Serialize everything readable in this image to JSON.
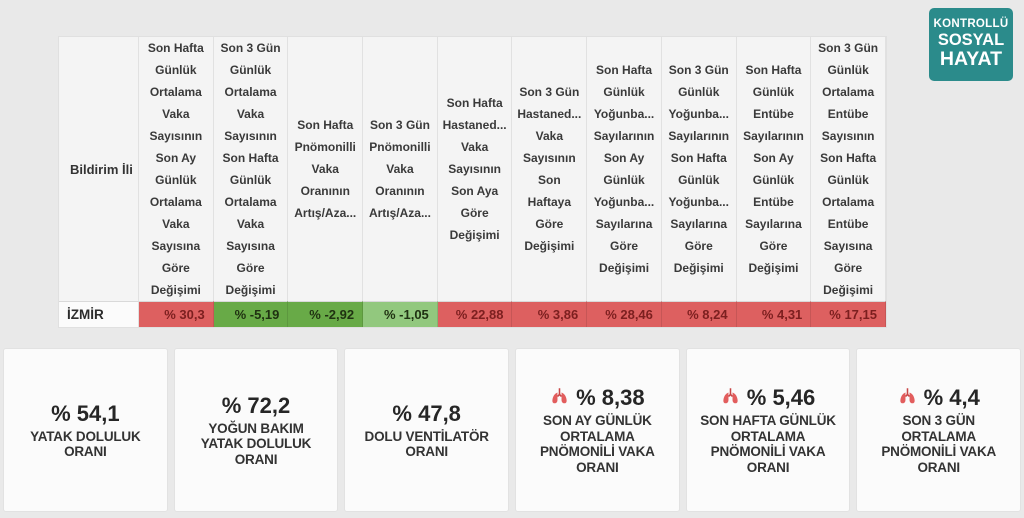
{
  "badge": {
    "lines": [
      "KONTROLLÜ",
      "SOSYAL",
      "HAYAT"
    ],
    "bg_color": "#2b8b8b",
    "text_color": "#ffffff"
  },
  "table": {
    "row_header_label": "Bildirim İli",
    "columns": [
      {
        "lines": [
          "Son Hafta",
          "Günlük",
          "Ortalama",
          "Vaka",
          "Sayısının",
          "Son Ay",
          "Günlük",
          "Ortalama",
          "Vaka",
          "Sayısına",
          "Göre",
          "Değişimi"
        ]
      },
      {
        "lines": [
          "Son 3 Gün",
          "Günlük",
          "Ortalama",
          "Vaka",
          "Sayısının",
          "Son Hafta",
          "Günlük",
          "Ortalama",
          "Vaka",
          "Sayısına",
          "Göre",
          "Değişimi"
        ]
      },
      {
        "lines": [
          "Son Hafta",
          "Pnömonilli",
          "Vaka",
          "Oranının",
          "Artış/Aza..."
        ]
      },
      {
        "lines": [
          "Son 3 Gün",
          "Pnömonilli",
          "Vaka",
          "Oranının",
          "Artış/Aza..."
        ]
      },
      {
        "lines": [
          "Son Hafta",
          "Hastaned...",
          "Vaka",
          "Sayısının",
          "Son Aya",
          "Göre",
          "Değişimi"
        ]
      },
      {
        "lines": [
          "Son 3 Gün",
          "Hastaned...",
          "Vaka",
          "Sayısının",
          "Son",
          "Haftaya",
          "Göre",
          "Değişimi"
        ]
      },
      {
        "lines": [
          "Son Hafta",
          "Günlük",
          "Yoğunba...",
          "Sayılarının",
          "Son Ay",
          "Günlük",
          "Yoğunba...",
          "Sayılarına",
          "Göre",
          "Değişimi"
        ]
      },
      {
        "lines": [
          "Son 3 Gün",
          "Günlük",
          "Yoğunba...",
          "Sayılarının",
          "Son Hafta",
          "Günlük",
          "Yoğunba...",
          "Sayılarına",
          "Göre",
          "Değişimi"
        ]
      },
      {
        "lines": [
          "Son Hafta",
          "Günlük",
          "Entübe",
          "Sayılarının",
          "Son Ay",
          "Günlük",
          "Entübe",
          "Sayılarına",
          "Göre",
          "Değişimi"
        ]
      },
      {
        "lines": [
          "Son 3 Gün",
          "Günlük",
          "Ortalama",
          "Entübe",
          "Sayısının",
          "Son Hafta",
          "Günlük",
          "Ortalama",
          "Entübe",
          "Sayısına",
          "Göre",
          "Değişimi"
        ]
      }
    ],
    "row": {
      "name": "İZMİR",
      "values": [
        {
          "text": "% 30,3",
          "color": "red"
        },
        {
          "text": "% -5,19",
          "color": "green"
        },
        {
          "text": "% -2,92",
          "color": "green"
        },
        {
          "text": "% -1,05",
          "color": "light_green"
        },
        {
          "text": "% 22,88",
          "color": "red"
        },
        {
          "text": "% 3,86",
          "color": "red"
        },
        {
          "text": "% 28,46",
          "color": "red"
        },
        {
          "text": "% 8,24",
          "color": "red"
        },
        {
          "text": "% 4,31",
          "color": "red"
        },
        {
          "text": "% 17,15",
          "color": "red"
        }
      ]
    },
    "colors": {
      "red_bg": "#dd6060",
      "red_text": "#7c1f1f",
      "green_bg": "#68aa47",
      "green_text": "#1f3111",
      "light_green_bg": "#92c87e",
      "light_green_text": "#1f3111"
    }
  },
  "cards": [
    {
      "value": "% 54,1",
      "icon": null,
      "label_lines": [
        "YATAK DOLULUK",
        "ORANI"
      ]
    },
    {
      "value": "% 72,2",
      "icon": null,
      "label_lines": [
        "YOĞUN BAKIM",
        "YATAK DOLULUK",
        "ORANI"
      ]
    },
    {
      "value": "% 47,8",
      "icon": null,
      "label_lines": [
        "DOLU VENTİLATÖR",
        "ORANI"
      ]
    },
    {
      "value": "% 8,38",
      "icon": "lungs-icon",
      "label_lines": [
        "SON AY GÜNLÜK",
        "ORTALAMA",
        "PNÖMONİLİ VAKA",
        "ORANI"
      ]
    },
    {
      "value": "% 5,46",
      "icon": "lungs-icon",
      "label_lines": [
        "SON HAFTA GÜNLÜK",
        "ORTALAMA",
        "PNÖMONİLİ VAKA",
        "ORANI"
      ]
    },
    {
      "value": "% 4,4",
      "icon": "lungs-icon",
      "label_lines": [
        "SON 3 GÜN",
        "ORTALAMA",
        "PNÖMONİLİ VAKA",
        "ORANI"
      ]
    }
  ],
  "icon_colors": {
    "lungs_lobe": "#e25d5d",
    "lungs_trachea": "#c94444"
  }
}
